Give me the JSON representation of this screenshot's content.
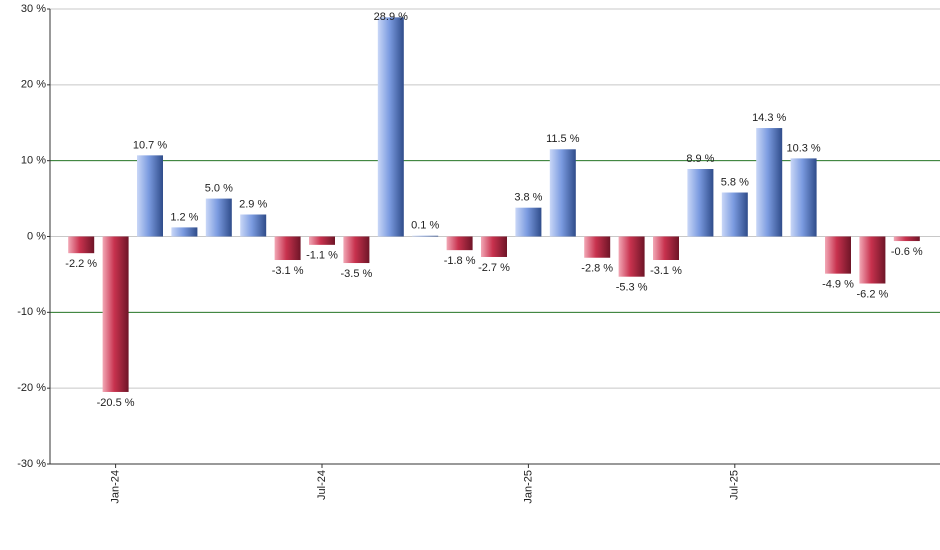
{
  "chart_data": {
    "type": "bar",
    "categories": [
      null,
      "Jan-24",
      null,
      null,
      null,
      null,
      null,
      "Jul-24",
      null,
      null,
      null,
      null,
      null,
      "Jan-25",
      null,
      null,
      null,
      null,
      null,
      "Jul-25",
      null,
      null,
      null,
      null,
      null
    ],
    "values": [
      -2.2,
      -20.5,
      10.7,
      1.2,
      5.0,
      2.9,
      -3.1,
      -1.1,
      -3.5,
      28.9,
      0.1,
      -1.8,
      -2.7,
      3.8,
      11.5,
      -2.8,
      -5.3,
      -3.1,
      8.9,
      5.8,
      14.3,
      10.3,
      -4.9,
      -6.2,
      -0.6
    ],
    "value_labels": [
      "-2.2 %",
      "-20.5 %",
      "10.7 %",
      "1.2 %",
      "5.0 %",
      "2.9 %",
      "-3.1 %",
      "-1.1 %",
      "-3.5 %",
      "28.9 %",
      "0.1 %",
      "-1.8 %",
      "-2.7 %",
      "3.8 %",
      "11.5 %",
      "-2.8 %",
      "-5.3 %",
      "-3.1 %",
      "8.9 %",
      "5.8 %",
      "14.3 %",
      "10.3 %",
      "-4.9 %",
      "-6.2 %",
      "-0.6 %"
    ],
    "positive_color": "#7b9be0",
    "negative_color": "#c8324e",
    "ylim": [
      -30,
      30
    ],
    "yticks": [
      {
        "value": -30,
        "label": "-30 %"
      },
      {
        "value": -20,
        "label": "-20 %"
      },
      {
        "value": -10,
        "label": "-10 %"
      },
      {
        "value": 0,
        "label": "0 %"
      },
      {
        "value": 10,
        "label": "10 %"
      },
      {
        "value": 20,
        "label": "20 %"
      },
      {
        "value": 30,
        "label": "30 %"
      }
    ],
    "highlight_lines": [
      -10,
      10
    ],
    "highlight_color": "#2e7d2e",
    "grid": true
  }
}
